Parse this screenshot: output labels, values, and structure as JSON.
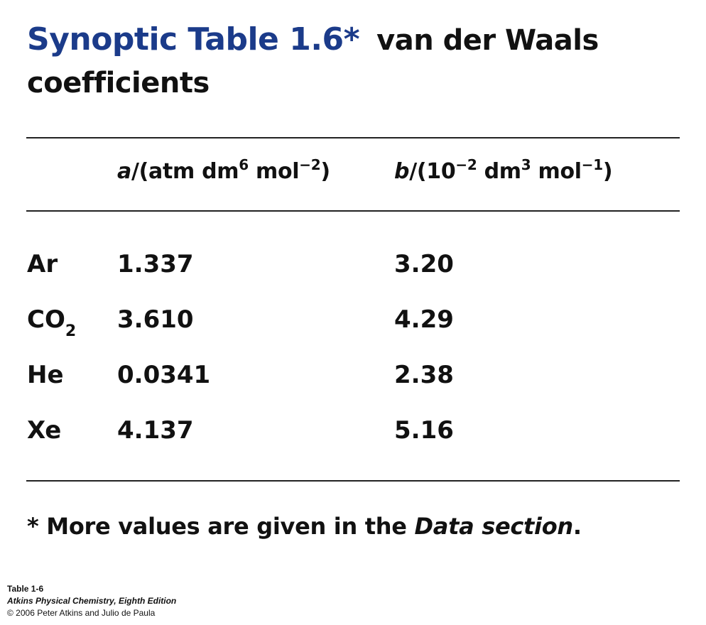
{
  "title": {
    "lead": "Synoptic Table 1.6*",
    "rest": "van der Waals coefficients"
  },
  "header": {
    "col_a": {
      "var": "a",
      "unit_open": "/(atm dm",
      "exp1": "6",
      "unit_mid": " mol",
      "exp2": "−2",
      "unit_close": ")"
    },
    "col_b": {
      "var": "b",
      "unit_open": "/(10",
      "exp1": "−2",
      "unit_mid1": " dm",
      "exp2": "3",
      "unit_mid2": " mol",
      "exp3": "−1",
      "unit_close": ")"
    }
  },
  "rows": [
    {
      "gas": "Ar",
      "sub": "",
      "a": "1.337",
      "b": "3.20"
    },
    {
      "gas": "CO",
      "sub": "2",
      "a": "3.610",
      "b": "4.29"
    },
    {
      "gas": "He",
      "sub": "",
      "a": "0.0341",
      "b": "2.38"
    },
    {
      "gas": "Xe",
      "sub": "",
      "a": "4.137",
      "b": "5.16"
    }
  ],
  "footnote": {
    "prefix": "* More values are given in the ",
    "italic": "Data section",
    "suffix": "."
  },
  "credit": {
    "line1": "Table 1-6",
    "line2": "Atkins Physical Chemistry, Eighth Edition",
    "line3": "© 2006 Peter Atkins and Julio de Paula"
  }
}
